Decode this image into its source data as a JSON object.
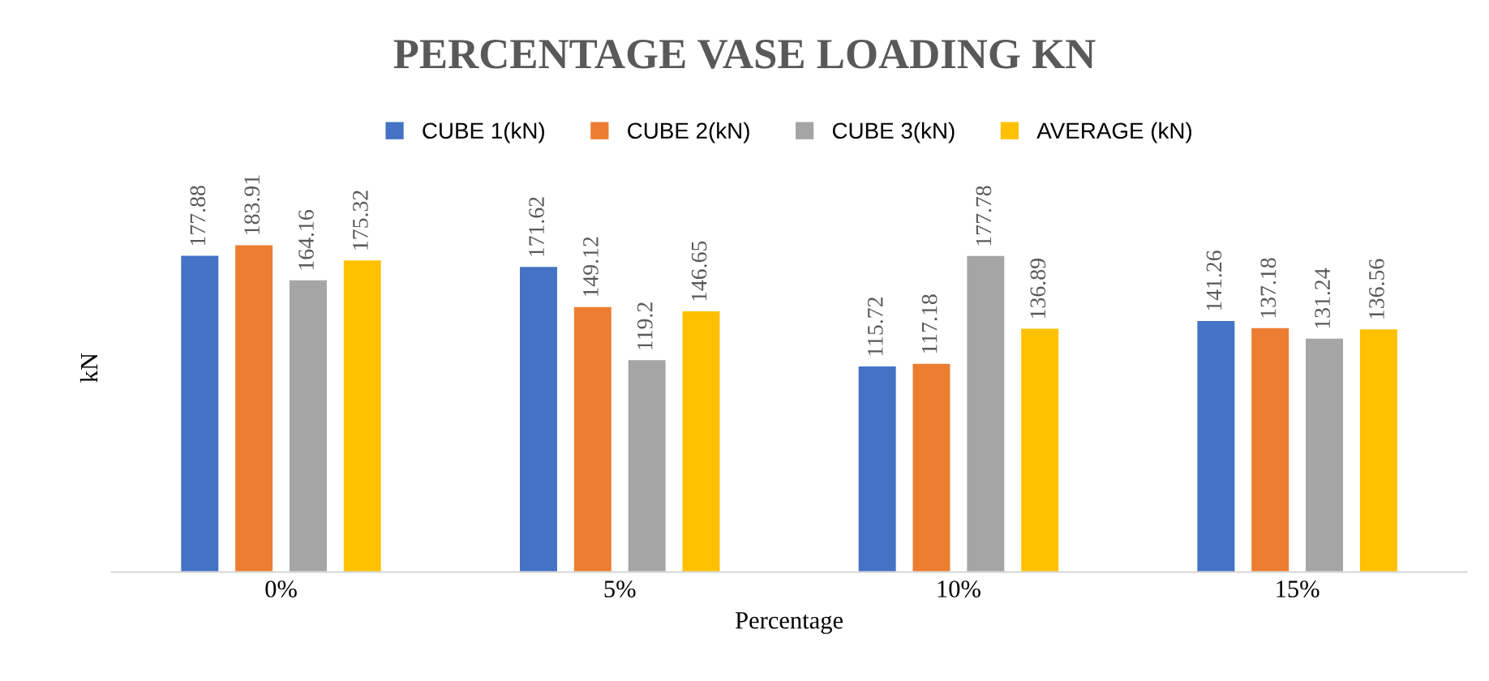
{
  "chart_data": {
    "type": "bar",
    "title": "PERCENTAGE VASE LOADING KN",
    "xlabel": "Percentage",
    "ylabel": "kN",
    "categories": [
      "0%",
      "5%",
      "10%",
      "15%"
    ],
    "series": [
      {
        "name": "CUBE 1(kN)",
        "color": "#4472c4",
        "values": [
          177.88,
          171.62,
          115.72,
          141.26
        ]
      },
      {
        "name": "CUBE 2(kN)",
        "color": "#ed7d31",
        "values": [
          183.91,
          149.12,
          117.18,
          137.18
        ]
      },
      {
        "name": "CUBE 3(kN)",
        "color": "#a5a5a5",
        "values": [
          164.16,
          119.2,
          177.78,
          131.24
        ]
      },
      {
        "name": "AVERAGE (kN)",
        "color": "#ffc000",
        "values": [
          175.32,
          146.65,
          136.89,
          136.56
        ]
      }
    ],
    "tick_labels": "x",
    "data_labels": true,
    "legend": "top",
    "grid": false
  }
}
